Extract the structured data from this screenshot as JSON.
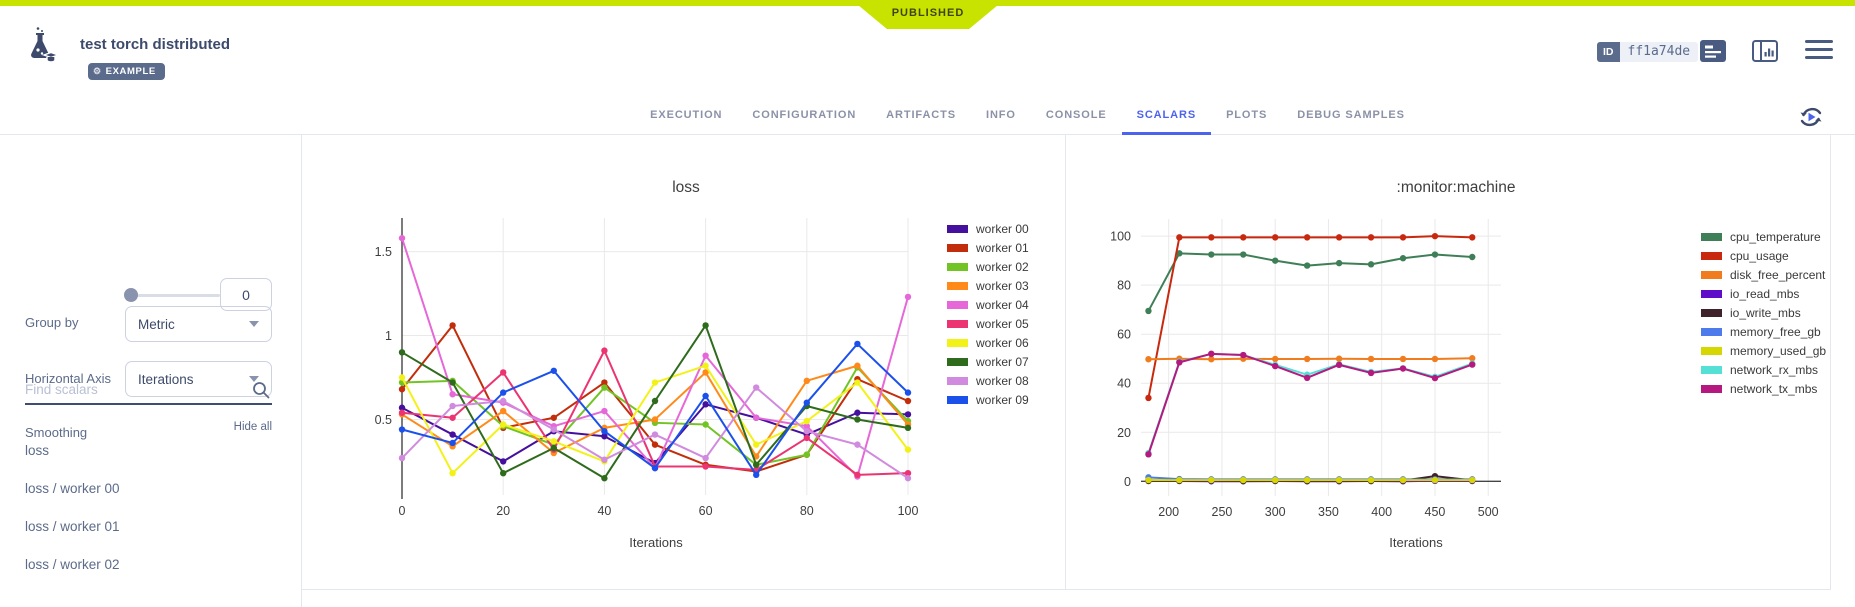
{
  "colors": {
    "accent_blue": "#4d63ed",
    "status_lime": "#c9e300",
    "slate": "#5c6b8a"
  },
  "icons": {
    "experiment": "flask-with-bubbles-and-cap",
    "tag": "gear",
    "details_view": "list-lines-filled",
    "info_panel": "panel-with-chart-outline",
    "menu": "hamburger",
    "auto_refresh": "circular-arrows-with-play",
    "search": "magnifier",
    "dropdown": "caret-down"
  },
  "header": {
    "status": "PUBLISHED",
    "title": "test torch distributed",
    "tag": "EXAMPLE",
    "id_label": "ID",
    "id_value": "ff1a74de"
  },
  "tabs": [
    {
      "label": "EXECUTION",
      "active": false
    },
    {
      "label": "CONFIGURATION",
      "active": false
    },
    {
      "label": "ARTIFACTS",
      "active": false
    },
    {
      "label": "INFO",
      "active": false
    },
    {
      "label": "CONSOLE",
      "active": false
    },
    {
      "label": "SCALARS",
      "active": true
    },
    {
      "label": "PLOTS",
      "active": false
    },
    {
      "label": "DEBUG SAMPLES",
      "active": false
    }
  ],
  "sidebar": {
    "group_by_label": "Group by",
    "group_by_value": "Metric",
    "axis_label": "Horizontal Axis",
    "axis_value": "Iterations",
    "smoothing_label": "Smoothing",
    "smoothing_value": "0",
    "search_placeholder": "Find scalars",
    "hide_all": "Hide all",
    "scalars": [
      "loss",
      "loss / worker 00",
      "loss / worker 01",
      "loss / worker 02"
    ]
  },
  "chart_data": [
    {
      "type": "line",
      "title": "loss",
      "xlabel": "Iterations",
      "ylabel": "",
      "grid": true,
      "legend_position": "right",
      "x": [
        0,
        10,
        20,
        30,
        40,
        50,
        60,
        70,
        80,
        90,
        100
      ],
      "x_ticks": [
        0,
        20,
        40,
        60,
        80,
        100
      ],
      "y_ticks": [
        0.5,
        1,
        1.5
      ],
      "xlim": [
        0,
        100
      ],
      "ylim": [
        0.05,
        1.7
      ],
      "series": [
        {
          "name": "worker 00",
          "color": "#45109E",
          "values": [
            0.57,
            0.41,
            0.25,
            0.43,
            0.4,
            0.24,
            0.59,
            0.51,
            0.41,
            0.54,
            0.53
          ]
        },
        {
          "name": "worker 01",
          "color": "#C22D0C",
          "values": [
            0.68,
            1.06,
            0.45,
            0.51,
            0.72,
            0.35,
            0.23,
            0.19,
            0.29,
            0.74,
            0.61
          ]
        },
        {
          "name": "worker 02",
          "color": "#72C425",
          "values": [
            0.72,
            0.73,
            0.46,
            0.35,
            0.69,
            0.48,
            0.47,
            0.23,
            0.29,
            0.81,
            0.49
          ]
        },
        {
          "name": "worker 03",
          "color": "#FF8A1A",
          "values": [
            0.53,
            0.34,
            0.55,
            0.3,
            0.45,
            0.5,
            0.78,
            0.28,
            0.73,
            0.82,
            0.47
          ]
        },
        {
          "name": "worker 04",
          "color": "#E668D8",
          "values": [
            1.58,
            0.65,
            0.6,
            0.46,
            0.55,
            0.21,
            0.88,
            0.51,
            0.46,
            0.16,
            1.23
          ]
        },
        {
          "name": "worker 05",
          "color": "#EB3471",
          "values": [
            0.54,
            0.51,
            0.78,
            0.32,
            0.91,
            0.22,
            0.22,
            0.2,
            0.39,
            0.17,
            0.18
          ]
        },
        {
          "name": "worker 06",
          "color": "#F2F218",
          "values": [
            0.75,
            0.18,
            0.47,
            0.37,
            0.25,
            0.72,
            0.82,
            0.35,
            0.49,
            0.72,
            0.32
          ]
        },
        {
          "name": "worker 07",
          "color": "#2E6B1C",
          "values": [
            0.9,
            0.72,
            0.18,
            0.33,
            0.15,
            0.61,
            1.06,
            0.23,
            0.58,
            0.5,
            0.45
          ]
        },
        {
          "name": "worker 08",
          "color": "#D18BDE",
          "values": [
            0.27,
            0.58,
            0.61,
            0.44,
            0.26,
            0.41,
            0.27,
            0.69,
            0.43,
            0.35,
            0.15
          ]
        },
        {
          "name": "worker 09",
          "color": "#1B50EB",
          "values": [
            0.44,
            0.36,
            0.66,
            0.79,
            0.43,
            0.21,
            0.64,
            0.17,
            0.6,
            0.95,
            0.66
          ]
        }
      ]
    },
    {
      "type": "line",
      "title": ":monitor:machine",
      "xlabel": "Iterations",
      "ylabel": "",
      "grid": true,
      "legend_position": "right",
      "x": [
        181,
        210,
        240,
        270,
        300,
        330,
        360,
        390,
        420,
        450,
        485
      ],
      "x_ticks": [
        200,
        250,
        300,
        350,
        400,
        450,
        500
      ],
      "y_ticks": [
        0,
        20,
        40,
        60,
        80,
        100
      ],
      "xlim": [
        174,
        512
      ],
      "ylim": [
        -6,
        107
      ],
      "series": [
        {
          "name": "cpu_temperature",
          "color": "#3F7F57",
          "values": [
            69.5,
            93,
            92.5,
            92.5,
            90,
            88,
            89,
            88.5,
            91,
            92.5,
            91.5
          ]
        },
        {
          "name": "cpu_usage",
          "color": "#C8290E",
          "values": [
            34,
            99.5,
            99.5,
            99.5,
            99.5,
            99.5,
            99.5,
            99.5,
            99.5,
            100,
            99.5
          ]
        },
        {
          "name": "disk_free_percent",
          "color": "#F07C1E",
          "values": [
            49.8,
            50,
            49.8,
            50,
            49.9,
            49.9,
            50,
            49.9,
            49.9,
            49.9,
            50.2
          ]
        },
        {
          "name": "io_read_mbs",
          "color": "#5E0DC8",
          "values": [
            0.4,
            0.1,
            0,
            0,
            0.1,
            0,
            0,
            0.1,
            0,
            0.2,
            0.1
          ]
        },
        {
          "name": "io_write_mbs",
          "color": "#40222C",
          "values": [
            0.1,
            0.2,
            0.3,
            0.1,
            0.2,
            0.1,
            0.2,
            0.1,
            0.3,
            2.1,
            0.4
          ]
        },
        {
          "name": "memory_free_gb",
          "color": "#4E7BEB",
          "values": [
            1.6,
            0.9,
            0.8,
            0.8,
            0.8,
            0.8,
            0.8,
            0.8,
            0.8,
            0.8,
            0.8
          ]
        },
        {
          "name": "memory_used_gb",
          "color": "#D6D600",
          "values": [
            0.5,
            0.5,
            0.5,
            0.5,
            0.5,
            0.5,
            0.5,
            0.5,
            0.5,
            0.5,
            0.5
          ]
        },
        {
          "name": "network_rx_mbs",
          "color": "#55E0D5",
          "values": [
            11.5,
            48.8,
            52,
            51.5,
            47.5,
            43.5,
            47.7,
            44.6,
            46.1,
            42.6,
            48
          ]
        },
        {
          "name": "network_tx_mbs",
          "color": "#B5197F",
          "values": [
            11,
            48.5,
            52,
            51.5,
            47,
            42.2,
            47.5,
            44.2,
            46,
            42.1,
            47.6
          ]
        }
      ]
    }
  ]
}
